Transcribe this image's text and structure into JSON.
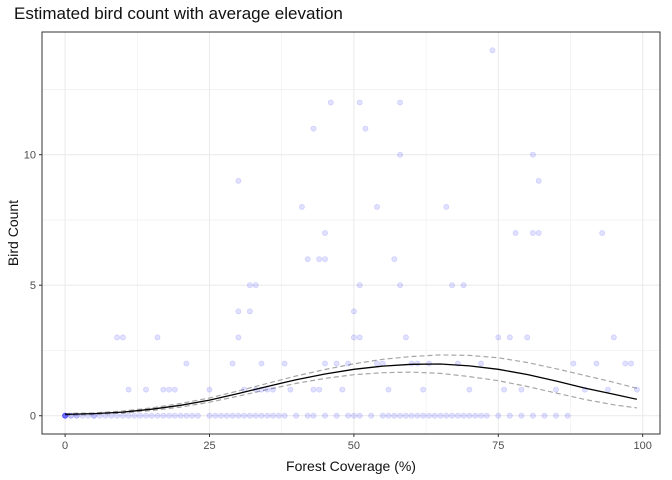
{
  "chart_data": {
    "type": "scatter",
    "title": "Estimated bird count with average elevation",
    "xlabel": "Forest Coverage (%)",
    "ylabel": "Bird Count",
    "xlim": [
      -4,
      103
    ],
    "ylim": [
      -0.7,
      14.7
    ],
    "xticks": [
      0,
      25,
      50,
      75,
      100
    ],
    "yticks": [
      0,
      5,
      10
    ],
    "grid": true,
    "point_color": "#0000ff",
    "line_color": "#000000",
    "band_color": "#a6a6a6",
    "points": [
      [
        0,
        0
      ],
      [
        0,
        0
      ],
      [
        0,
        0
      ],
      [
        0,
        0
      ],
      [
        0,
        0
      ],
      [
        0,
        0
      ],
      [
        1,
        0
      ],
      [
        1,
        0
      ],
      [
        2,
        0
      ],
      [
        2,
        0
      ],
      [
        3,
        0
      ],
      [
        4,
        0
      ],
      [
        5,
        0
      ],
      [
        5,
        0
      ],
      [
        6,
        0
      ],
      [
        7,
        0
      ],
      [
        8,
        0
      ],
      [
        9,
        0
      ],
      [
        10,
        0
      ],
      [
        11,
        0
      ],
      [
        12,
        0
      ],
      [
        13,
        0
      ],
      [
        14,
        0
      ],
      [
        15,
        0
      ],
      [
        16,
        0
      ],
      [
        17,
        0
      ],
      [
        18,
        0
      ],
      [
        19,
        0
      ],
      [
        20,
        0
      ],
      [
        21,
        0
      ],
      [
        22,
        0
      ],
      [
        23,
        0
      ],
      [
        25,
        0
      ],
      [
        26,
        0
      ],
      [
        27,
        0
      ],
      [
        28,
        0
      ],
      [
        29,
        0
      ],
      [
        30,
        0
      ],
      [
        31,
        0
      ],
      [
        32,
        0
      ],
      [
        33,
        0
      ],
      [
        34,
        0
      ],
      [
        35,
        0
      ],
      [
        36,
        0
      ],
      [
        37,
        0
      ],
      [
        38,
        0
      ],
      [
        40,
        0
      ],
      [
        42,
        0
      ],
      [
        43,
        0
      ],
      [
        45,
        0
      ],
      [
        47,
        0
      ],
      [
        49,
        0
      ],
      [
        50,
        0
      ],
      [
        51,
        0
      ],
      [
        53,
        0
      ],
      [
        55,
        0
      ],
      [
        56,
        0
      ],
      [
        57,
        0
      ],
      [
        58,
        0
      ],
      [
        59,
        0
      ],
      [
        60,
        0
      ],
      [
        61,
        0
      ],
      [
        62,
        0
      ],
      [
        63,
        0
      ],
      [
        64,
        0
      ],
      [
        65,
        0
      ],
      [
        66,
        0
      ],
      [
        67,
        0
      ],
      [
        68,
        0
      ],
      [
        69,
        0
      ],
      [
        70,
        0
      ],
      [
        71,
        0
      ],
      [
        72,
        0
      ],
      [
        73,
        0
      ],
      [
        75,
        0
      ],
      [
        77,
        0
      ],
      [
        79,
        0
      ],
      [
        81,
        0
      ],
      [
        83,
        0
      ],
      [
        85,
        0
      ],
      [
        87,
        0
      ],
      [
        9,
        3
      ],
      [
        10,
        3
      ],
      [
        16,
        3
      ],
      [
        11,
        1
      ],
      [
        14,
        1
      ],
      [
        17,
        1
      ],
      [
        18,
        1
      ],
      [
        19,
        1
      ],
      [
        21,
        2
      ],
      [
        25,
        1
      ],
      [
        29,
        2
      ],
      [
        30,
        4
      ],
      [
        30,
        3
      ],
      [
        31,
        1
      ],
      [
        32,
        5
      ],
      [
        33,
        5
      ],
      [
        32,
        4
      ],
      [
        33,
        1
      ],
      [
        34,
        2
      ],
      [
        34,
        1
      ],
      [
        35,
        1
      ],
      [
        36,
        1
      ],
      [
        30,
        9
      ],
      [
        38,
        2
      ],
      [
        39,
        1
      ],
      [
        41,
        8
      ],
      [
        42,
        6
      ],
      [
        43,
        1
      ],
      [
        43,
        11
      ],
      [
        44,
        6
      ],
      [
        45,
        7
      ],
      [
        45,
        6
      ],
      [
        46,
        12
      ],
      [
        44,
        1
      ],
      [
        45,
        2
      ],
      [
        47,
        2
      ],
      [
        48,
        1
      ],
      [
        49,
        2
      ],
      [
        50,
        4
      ],
      [
        50,
        3
      ],
      [
        51,
        3
      ],
      [
        51,
        5
      ],
      [
        51,
        12
      ],
      [
        52,
        11
      ],
      [
        54,
        8
      ],
      [
        54,
        2
      ],
      [
        55,
        2
      ],
      [
        56,
        1
      ],
      [
        57,
        6
      ],
      [
        58,
        5
      ],
      [
        58,
        10
      ],
      [
        58,
        12
      ],
      [
        59,
        3
      ],
      [
        60,
        2
      ],
      [
        61,
        2
      ],
      [
        62,
        1
      ],
      [
        63,
        2
      ],
      [
        66,
        8
      ],
      [
        67,
        5
      ],
      [
        68,
        2
      ],
      [
        69,
        5
      ],
      [
        70,
        1
      ],
      [
        72,
        2
      ],
      [
        74,
        14
      ],
      [
        75,
        3
      ],
      [
        76,
        1
      ],
      [
        77,
        3
      ],
      [
        78,
        7
      ],
      [
        79,
        1
      ],
      [
        80,
        3
      ],
      [
        81,
        7
      ],
      [
        81,
        10
      ],
      [
        82,
        9
      ],
      [
        82,
        7
      ],
      [
        85,
        1
      ],
      [
        88,
        2
      ],
      [
        90,
        1
      ],
      [
        92,
        2
      ],
      [
        93,
        7
      ],
      [
        94,
        1
      ],
      [
        95,
        3
      ],
      [
        97,
        2
      ],
      [
        98,
        2
      ],
      [
        99,
        1
      ]
    ],
    "fit_curve": [
      [
        0,
        0.05
      ],
      [
        5,
        0.08
      ],
      [
        10,
        0.14
      ],
      [
        15,
        0.25
      ],
      [
        20,
        0.4
      ],
      [
        25,
        0.6
      ],
      [
        30,
        0.85
      ],
      [
        35,
        1.12
      ],
      [
        40,
        1.38
      ],
      [
        45,
        1.6
      ],
      [
        50,
        1.78
      ],
      [
        55,
        1.9
      ],
      [
        60,
        1.97
      ],
      [
        65,
        1.98
      ],
      [
        70,
        1.91
      ],
      [
        75,
        1.78
      ],
      [
        80,
        1.58
      ],
      [
        85,
        1.33
      ],
      [
        90,
        1.06
      ],
      [
        95,
        0.82
      ],
      [
        99,
        0.63
      ]
    ],
    "upper_band": [
      [
        0,
        0.08
      ],
      [
        5,
        0.11
      ],
      [
        10,
        0.18
      ],
      [
        15,
        0.3
      ],
      [
        20,
        0.47
      ],
      [
        25,
        0.68
      ],
      [
        30,
        0.95
      ],
      [
        35,
        1.24
      ],
      [
        40,
        1.52
      ],
      [
        45,
        1.77
      ],
      [
        50,
        1.99
      ],
      [
        55,
        2.16
      ],
      [
        60,
        2.27
      ],
      [
        65,
        2.33
      ],
      [
        70,
        2.31
      ],
      [
        75,
        2.22
      ],
      [
        80,
        2.04
      ],
      [
        85,
        1.8
      ],
      [
        90,
        1.54
      ],
      [
        95,
        1.28
      ],
      [
        99,
        1.05
      ]
    ],
    "lower_band": [
      [
        0,
        0.02
      ],
      [
        5,
        0.05
      ],
      [
        10,
        0.1
      ],
      [
        15,
        0.2
      ],
      [
        20,
        0.33
      ],
      [
        25,
        0.52
      ],
      [
        30,
        0.75
      ],
      [
        35,
        1.0
      ],
      [
        40,
        1.24
      ],
      [
        45,
        1.43
      ],
      [
        50,
        1.57
      ],
      [
        55,
        1.65
      ],
      [
        60,
        1.67
      ],
      [
        65,
        1.62
      ],
      [
        70,
        1.5
      ],
      [
        75,
        1.34
      ],
      [
        80,
        1.12
      ],
      [
        85,
        0.87
      ],
      [
        90,
        0.62
      ],
      [
        95,
        0.42
      ],
      [
        99,
        0.3
      ]
    ]
  }
}
